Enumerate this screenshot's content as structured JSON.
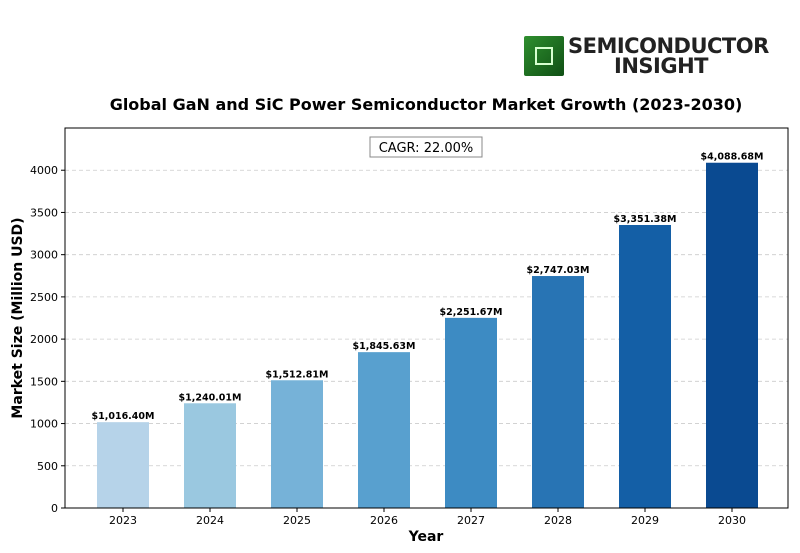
{
  "logo": {
    "line1": "SEMICONDUCTOR",
    "line2": "INSIGHT"
  },
  "chart_data": {
    "type": "bar",
    "title": "Global GaN and SiC Power Semiconductor Market Growth (2023-2030)",
    "xlabel": "Year",
    "ylabel": "Market Size (Million USD)",
    "categories": [
      "2023",
      "2024",
      "2025",
      "2026",
      "2027",
      "2028",
      "2029",
      "2030"
    ],
    "values": [
      1016.4,
      1240.01,
      1512.81,
      1845.63,
      2251.67,
      2747.03,
      3351.38,
      4088.68
    ],
    "data_labels": [
      "$1,016.40M",
      "$1,240.01M",
      "$1,512.81M",
      "$1,845.63M",
      "$2,251.67M",
      "$2,747.03M",
      "$3,351.38M",
      "$4,088.68M"
    ],
    "colors": [
      "#b6d3e9",
      "#9ac8e0",
      "#76b2d8",
      "#58a0cf",
      "#3d8bc3",
      "#2874b4",
      "#145fa6",
      "#0a4a91"
    ],
    "annotation": "CAGR: 22.00%",
    "yticks": [
      0,
      500,
      1000,
      1500,
      2000,
      2500,
      3000,
      3500,
      4000
    ],
    "ylim": [
      0,
      4500
    ],
    "grid": true
  }
}
